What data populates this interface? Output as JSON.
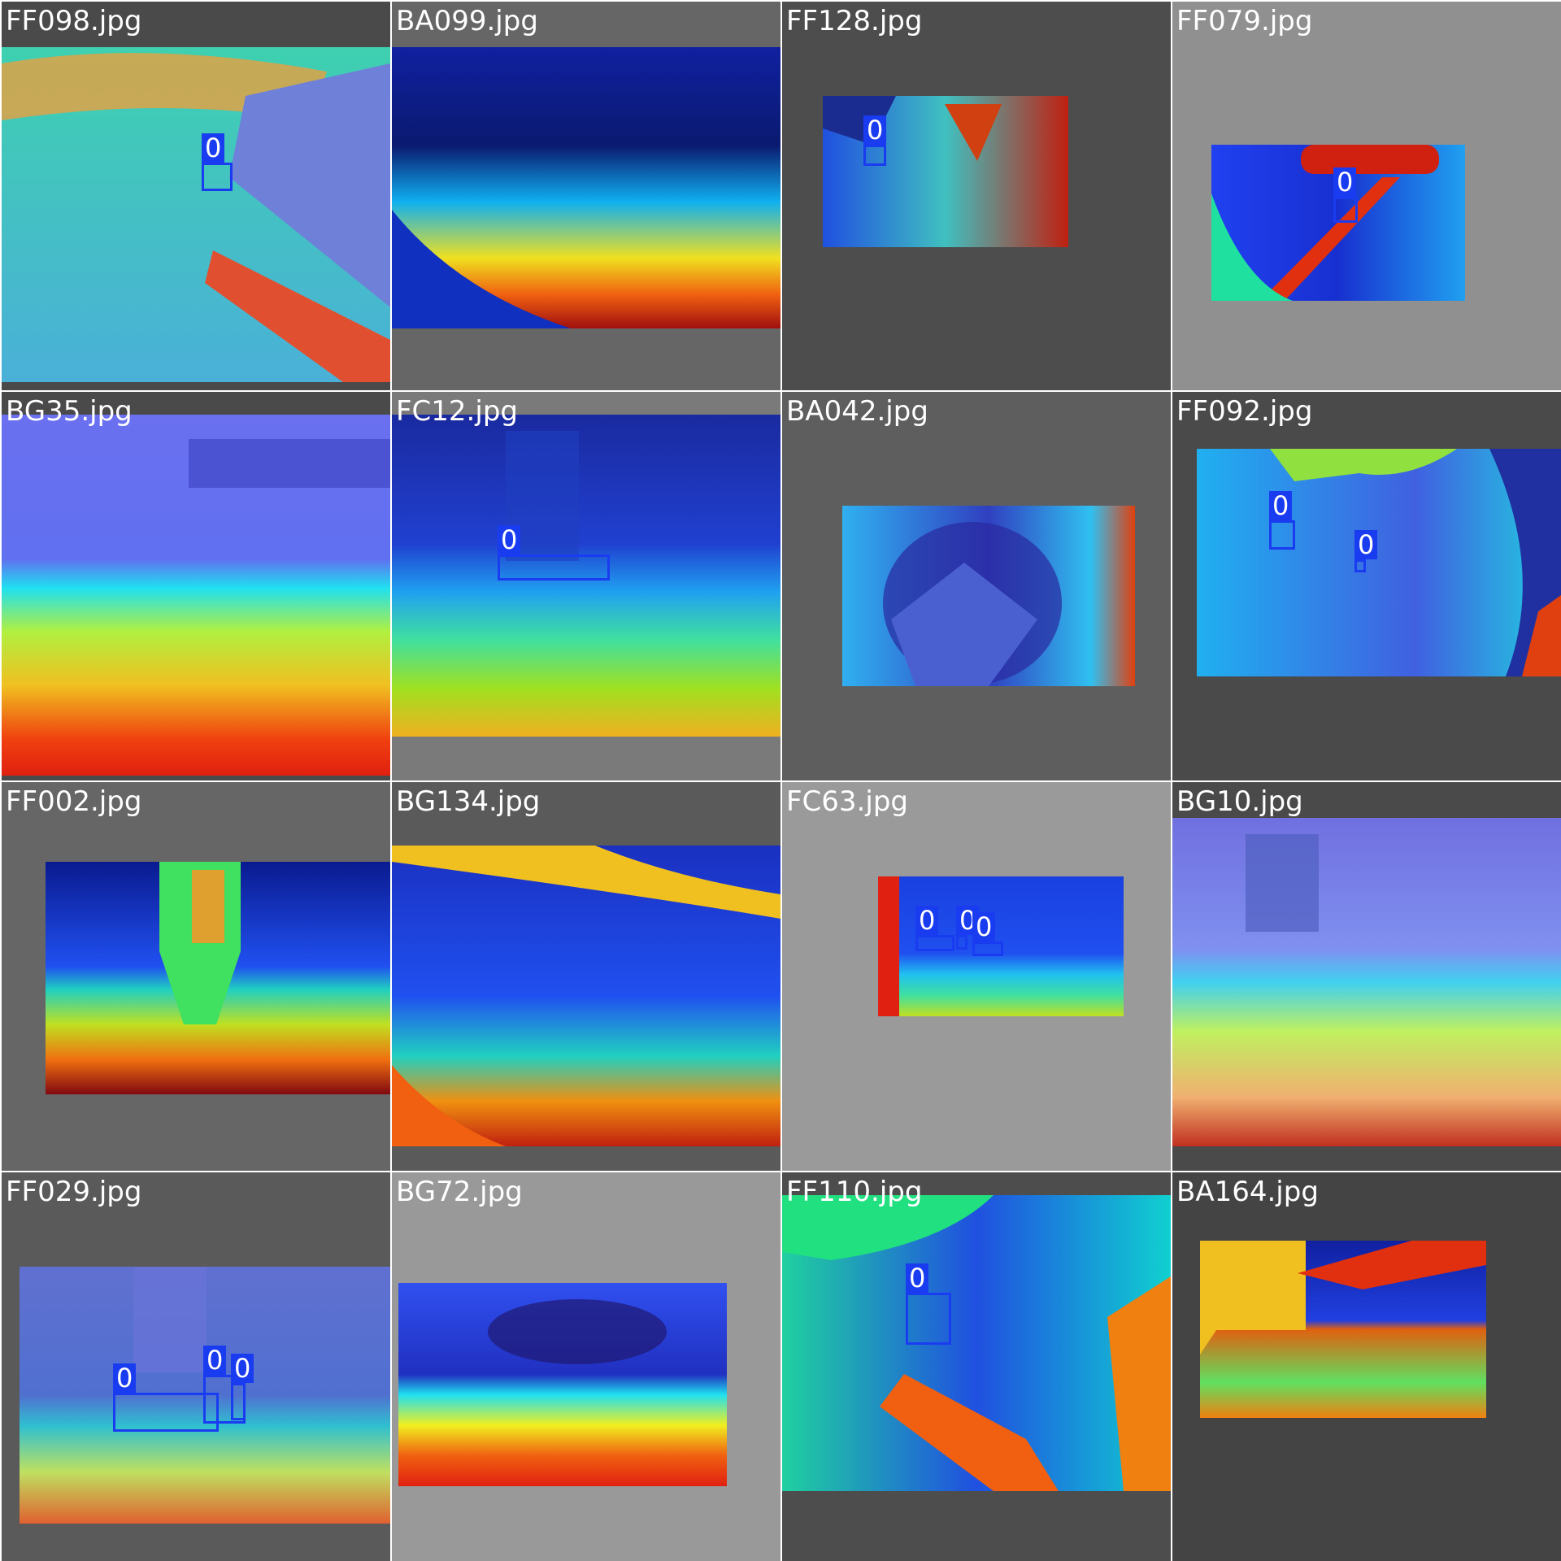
{
  "grid_title": "",
  "tiles": [
    {
      "filename": "FF098.jpg",
      "bg": "#4a4a4a",
      "detections": [
        {
          "class_label": "0"
        }
      ]
    },
    {
      "filename": "BA099.jpg",
      "bg": "#666666",
      "detections": []
    },
    {
      "filename": "FF128.jpg",
      "bg": "#4d4d4d",
      "detections": [
        {
          "class_label": "0"
        }
      ]
    },
    {
      "filename": "FF079.jpg",
      "bg": "#909090",
      "detections": [
        {
          "class_label": "0"
        }
      ]
    },
    {
      "filename": "BG35.jpg",
      "bg": "#4a4a4a",
      "detections": []
    },
    {
      "filename": "FC12.jpg",
      "bg": "#7a7a7a",
      "detections": [
        {
          "class_label": "0"
        }
      ]
    },
    {
      "filename": "BA042.jpg",
      "bg": "#5e5e5e",
      "detections": []
    },
    {
      "filename": "FF092.jpg",
      "bg": "#4a4a4a",
      "detections": [
        {
          "class_label": "0"
        },
        {
          "class_label": "0"
        }
      ]
    },
    {
      "filename": "FF002.jpg",
      "bg": "#666666",
      "detections": []
    },
    {
      "filename": "BG134.jpg",
      "bg": "#5a5a5a",
      "detections": []
    },
    {
      "filename": "FC63.jpg",
      "bg": "#9a9a9a",
      "detections": [
        {
          "class_label": "0"
        },
        {
          "class_label": "0"
        },
        {
          "class_label": "0"
        }
      ]
    },
    {
      "filename": "BG10.jpg",
      "bg": "#4a4a4a",
      "detections": []
    },
    {
      "filename": "FF029.jpg",
      "bg": "#5a5a5a",
      "detections": [
        {
          "class_label": "0"
        },
        {
          "class_label": "0"
        },
        {
          "class_label": "0"
        }
      ]
    },
    {
      "filename": "BG72.jpg",
      "bg": "#999999",
      "detections": []
    },
    {
      "filename": "FF110.jpg",
      "bg": "#4d4d4d",
      "detections": [
        {
          "class_label": "0"
        }
      ]
    },
    {
      "filename": "BA164.jpg",
      "bg": "#444444",
      "detections": []
    }
  ],
  "colors": {
    "bbox": "#1a3cf0",
    "label_text": "#ffffff",
    "grid_border": "#ffffff"
  }
}
